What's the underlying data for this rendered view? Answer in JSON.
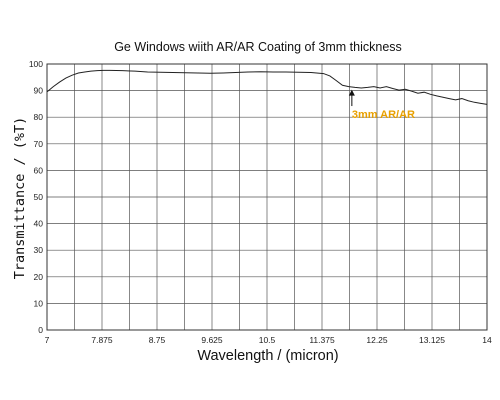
{
  "chart_data": {
    "type": "line",
    "title": "Ge Windows wiith AR/AR Coating of 3mm thickness",
    "xlabel": "Wavelength / (micron)",
    "ylabel": "Transmittance / (%T)",
    "xlim": [
      7,
      14
    ],
    "ylim": [
      0,
      100
    ],
    "x_ticks": [
      "7",
      "7.875",
      "8.75",
      "9.625",
      "10.5",
      "11.375",
      "12.25",
      "13.125",
      "14"
    ],
    "y_ticks": [
      "0",
      "10",
      "20",
      "30",
      "40",
      "50",
      "60",
      "70",
      "80",
      "90",
      "100"
    ],
    "grid": true,
    "series": [
      {
        "x": [
          7.0,
          7.1,
          7.2,
          7.3,
          7.4,
          7.5,
          7.6,
          7.7,
          7.8,
          7.9,
          8.0,
          8.2,
          8.4,
          8.6,
          8.8,
          9.0,
          9.2,
          9.4,
          9.6,
          9.8,
          10.0,
          10.2,
          10.4,
          10.6,
          10.8,
          11.0,
          11.2,
          11.4,
          11.5,
          11.6,
          11.7,
          11.8,
          11.9,
          12.0,
          12.1,
          12.2,
          12.3,
          12.4,
          12.5,
          12.6,
          12.7,
          12.8,
          12.9,
          13.0,
          13.1,
          13.2,
          13.3,
          13.4,
          13.5,
          13.6,
          13.7,
          13.8,
          13.9,
          14.0
        ],
        "y": [
          89.5,
          91.5,
          93.2,
          94.7,
          95.8,
          96.6,
          97.0,
          97.3,
          97.5,
          97.6,
          97.6,
          97.5,
          97.3,
          97.0,
          96.9,
          96.8,
          96.7,
          96.6,
          96.5,
          96.6,
          96.8,
          97.0,
          97.1,
          97.0,
          97.0,
          96.9,
          96.8,
          96.4,
          95.5,
          93.8,
          92.0,
          91.5,
          91.2,
          91.0,
          91.2,
          91.5,
          91.0,
          91.5,
          90.8,
          90.2,
          90.5,
          89.8,
          89.0,
          89.4,
          88.6,
          88.0,
          87.5,
          87.0,
          86.5,
          87.0,
          86.2,
          85.6,
          85.2,
          84.8
        ]
      }
    ],
    "annotations": [
      {
        "text": "3mm AR/AR",
        "x": 11.85,
        "y": 87.2,
        "color": "#e8a000"
      }
    ]
  }
}
